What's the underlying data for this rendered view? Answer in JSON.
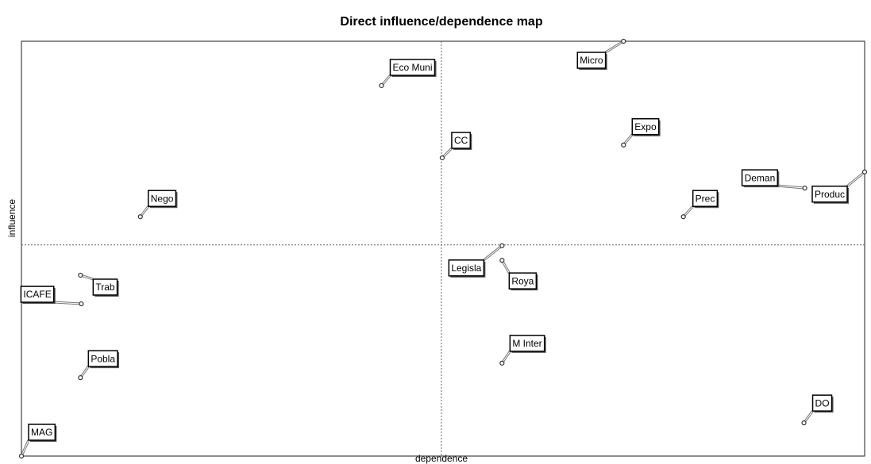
{
  "chart_data": {
    "type": "scatter",
    "title": "Direct influence/dependence map",
    "x_label": "dependence",
    "y_label": "influence",
    "xlim": [
      0,
      100
    ],
    "ylim": [
      0,
      100
    ],
    "reference_lines": {
      "x": 49.8,
      "y": 50.9
    },
    "color": "#333333",
    "points": [
      {
        "label": "Micro",
        "x": 71.4,
        "y": 100
      },
      {
        "label": "Eco Muni",
        "x": 42.7,
        "y": 89.3
      },
      {
        "label": "CC",
        "x": 49.9,
        "y": 71.9
      },
      {
        "label": "Expo",
        "x": 71.4,
        "y": 75.0
      },
      {
        "label": "Produc",
        "x": 100,
        "y": 68.5
      },
      {
        "label": "Deman",
        "x": 92.9,
        "y": 64.6
      },
      {
        "label": "Prec",
        "x": 78.5,
        "y": 57.7
      },
      {
        "label": "Nego",
        "x": 14.1,
        "y": 57.7
      },
      {
        "label": "Legisla",
        "x": 57.0,
        "y": 50.7
      },
      {
        "label": "Roya",
        "x": 57.0,
        "y": 47.2
      },
      {
        "label": "Trab",
        "x": 7.0,
        "y": 43.6
      },
      {
        "label": "ICAFE",
        "x": 7.1,
        "y": 36.7
      },
      {
        "label": "Pobla",
        "x": 7.0,
        "y": 18.9
      },
      {
        "label": "M Inter",
        "x": 57.0,
        "y": 22.4
      },
      {
        "label": "DO",
        "x": 92.8,
        "y": 8.0
      },
      {
        "label": "MAG",
        "x": 0,
        "y": 0
      }
    ]
  }
}
